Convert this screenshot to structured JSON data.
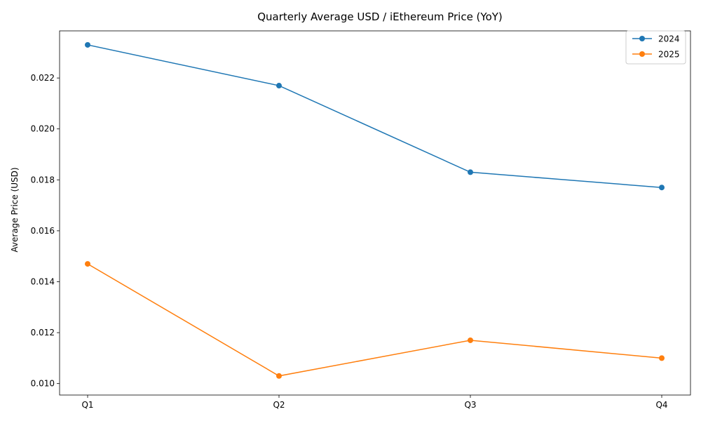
{
  "chart_data": {
    "type": "line",
    "title": "Quarterly Average USD / iEthereum Price (YoY)",
    "xlabel": "",
    "ylabel": "Average Price (USD)",
    "categories": [
      "Q1",
      "Q2",
      "Q3",
      "Q4"
    ],
    "ylim": [
      0.00955,
      0.02385
    ],
    "yticks": [
      0.01,
      0.012,
      0.014,
      0.016,
      0.018,
      0.02,
      0.022
    ],
    "ytick_labels": [
      "0.010",
      "0.012",
      "0.014",
      "0.016",
      "0.018",
      "0.020",
      "0.022"
    ],
    "grid": false,
    "legend_position": "top-right",
    "series": [
      {
        "name": "2024",
        "color": "#1f77b4",
        "marker": "circle",
        "values": [
          0.0233,
          0.0217,
          0.0183,
          0.0177
        ]
      },
      {
        "name": "2025",
        "color": "#ff7f0e",
        "marker": "circle",
        "values": [
          0.0147,
          0.0103,
          0.0117,
          0.011
        ]
      }
    ]
  }
}
